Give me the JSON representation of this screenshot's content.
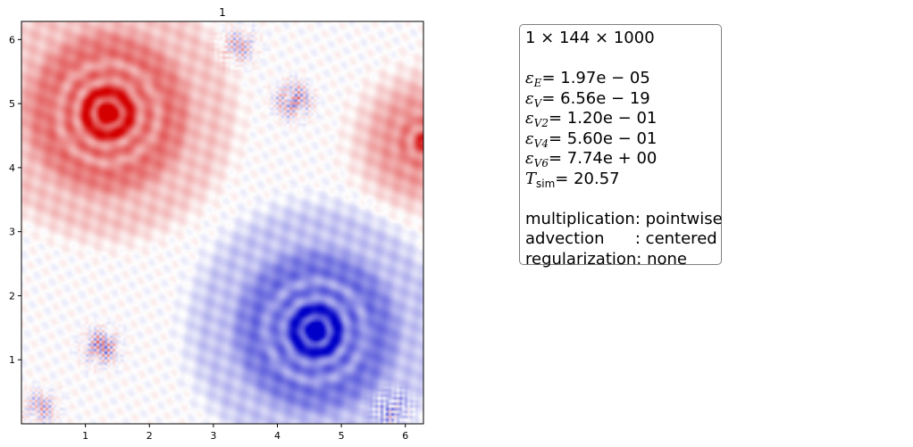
{
  "chart_data": {
    "type": "heatmap",
    "title": "1",
    "xlabel": "",
    "ylabel": "",
    "xlim": [
      0,
      6.283
    ],
    "ylim": [
      0,
      6.283
    ],
    "x_ticks": [
      "1",
      "2",
      "3",
      "4",
      "5",
      "6"
    ],
    "y_ticks": [
      "1",
      "2",
      "3",
      "4",
      "5",
      "6"
    ],
    "colormap": "bwr",
    "colors": {
      "positive": "#d40000",
      "negative": "#0000c8",
      "zero": "#ffffff"
    },
    "features": [
      {
        "sign": "positive",
        "x": 1.35,
        "y": 4.85,
        "amplitude": 1.0,
        "radius": 0.85
      },
      {
        "sign": "negative",
        "x": 4.6,
        "y": 1.45,
        "amplitude": 1.0,
        "radius": 0.85
      },
      {
        "sign": "positive",
        "x": 6.28,
        "y": 4.4,
        "amplitude": 0.65,
        "radius": 0.45
      },
      {
        "sign": "noise",
        "x": 1.25,
        "y": 1.2,
        "amplitude": 0.9
      },
      {
        "sign": "noise",
        "x": 4.25,
        "y": 5.05,
        "amplitude": 0.9
      },
      {
        "sign": "noise",
        "x": 3.4,
        "y": 5.9,
        "amplitude": 0.6
      },
      {
        "sign": "noise",
        "x": 0.3,
        "y": 0.25,
        "amplitude": 0.6
      },
      {
        "sign": "noise",
        "x": 5.8,
        "y": 0.2,
        "amplitude": 0.6
      }
    ]
  },
  "info": {
    "dims": "1 × 144 × 1000",
    "eps_E_value": "= 1.97e − 05",
    "eps_V_value": "= 6.56e − 19",
    "eps_V2_value": "= 1.20e − 01",
    "eps_V4_value": "= 5.60e − 01",
    "eps_V6_value": "= 7.74e + 00",
    "T_sim_value": "= 20.57",
    "eps_symbol": "ε",
    "sub_E": "E",
    "sub_V": "V",
    "sub_V2": "V2",
    "sub_V4": "V4",
    "sub_V6": "V6",
    "T_symbol": "T",
    "sub_sim": "sim",
    "multiplication": "multiplication: pointwise",
    "advection": "advection      : centered",
    "regularization": "regularization: none"
  }
}
